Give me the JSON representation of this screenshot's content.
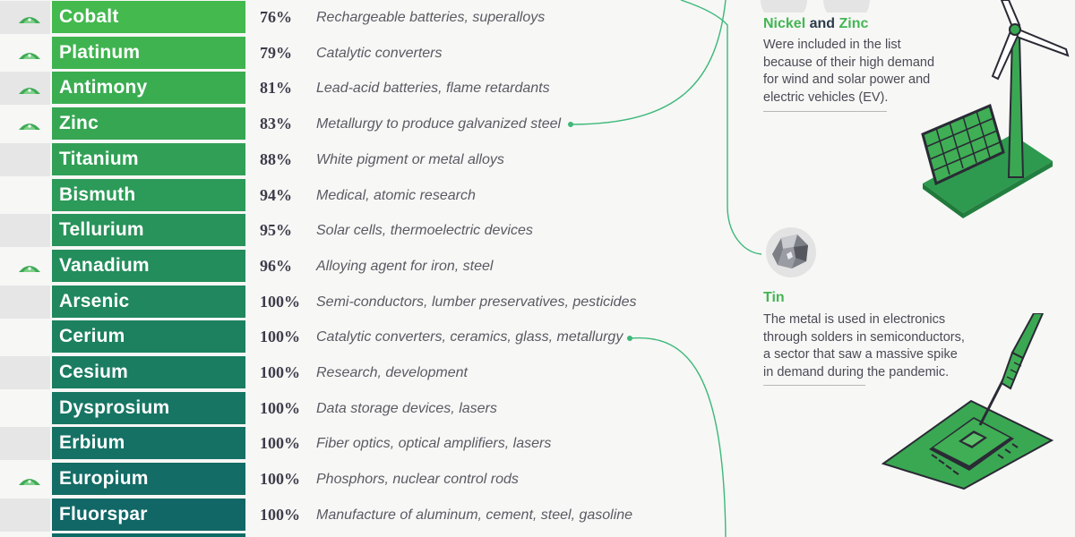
{
  "rows": [
    {
      "name": "Cobalt",
      "pct": "76%",
      "use": "Rechargeable batteries, superalloys",
      "renewable": true,
      "color": "#43b94e"
    },
    {
      "name": "Platinum",
      "pct": "79%",
      "use": "Catalytic converters",
      "renewable": true,
      "color": "#3fb34f"
    },
    {
      "name": "Antimony",
      "pct": "81%",
      "use": "Lead-acid batteries, flame retardants",
      "renewable": true,
      "color": "#3aad51"
    },
    {
      "name": "Zinc",
      "pct": "83%",
      "use": "Metallurgy to produce galvanized steel",
      "renewable": true,
      "color": "#36a653"
    },
    {
      "name": "Titanium",
      "pct": "88%",
      "use": "White pigment or metal alloys",
      "renewable": false,
      "color": "#31a056"
    },
    {
      "name": "Bismuth",
      "pct": "94%",
      "use": "Medical, atomic research",
      "renewable": false,
      "color": "#2c9a58"
    },
    {
      "name": "Tellurium",
      "pct": "95%",
      "use": "Solar cells, thermoelectric devices",
      "renewable": false,
      "color": "#28935a"
    },
    {
      "name": "Vanadium",
      "pct": "96%",
      "use": "Alloying agent for iron, steel",
      "renewable": true,
      "color": "#248d5c"
    },
    {
      "name": "Arsenic",
      "pct": "100%",
      "use": "Semi-conductors, lumber preservatives, pesticides",
      "renewable": false,
      "color": "#20875e"
    },
    {
      "name": "Cerium",
      "pct": "100%",
      "use": "Catalytic converters, ceramics, glass, metallurgy",
      "renewable": false,
      "color": "#1d8160"
    },
    {
      "name": "Cesium",
      "pct": "100%",
      "use": "Research, development",
      "renewable": false,
      "color": "#1a7c61"
    },
    {
      "name": "Dysprosium",
      "pct": "100%",
      "use": "Data storage devices, lasers",
      "renewable": false,
      "color": "#177663"
    },
    {
      "name": "Erbium",
      "pct": "100%",
      "use": "Fiber optics, optical amplifiers, lasers",
      "renewable": false,
      "color": "#157164"
    },
    {
      "name": "Europium",
      "pct": "100%",
      "use": "Phosphors, nuclear control rods",
      "renewable": true,
      "color": "#136c65"
    },
    {
      "name": "Fluorspar",
      "pct": "100%",
      "use": "Manufacture of aluminum, cement, steel, gasoline",
      "renewable": false,
      "color": "#116766"
    }
  ],
  "annotations": {
    "nickel_zinc": {
      "title_part1": "Nickel",
      "title_and": " and ",
      "title_part2": "Zinc",
      "line1": "Were included in the list",
      "line2": "because of their high demand",
      "line3": "for wind and solar power and",
      "line4": "electric vehicles (EV)."
    },
    "tin": {
      "title": "Tin",
      "line1": "The metal is used in electronics",
      "line2": "through solders in semiconductors,",
      "line3": "a sector that saw a massive spike",
      "line4": "in demand during the pandemic."
    }
  },
  "colors": {
    "accent_green": "#43b653",
    "connector": "#3cb878",
    "text_dark": "#2d3a4a"
  },
  "icons": {
    "renewable_marker": "green-mineral-pile-icon",
    "tin_image": "tin-metal-chunk-icon",
    "wind_solar": "wind-turbine-solar-panel-icon",
    "chip": "soldering-iron-chip-icon"
  }
}
